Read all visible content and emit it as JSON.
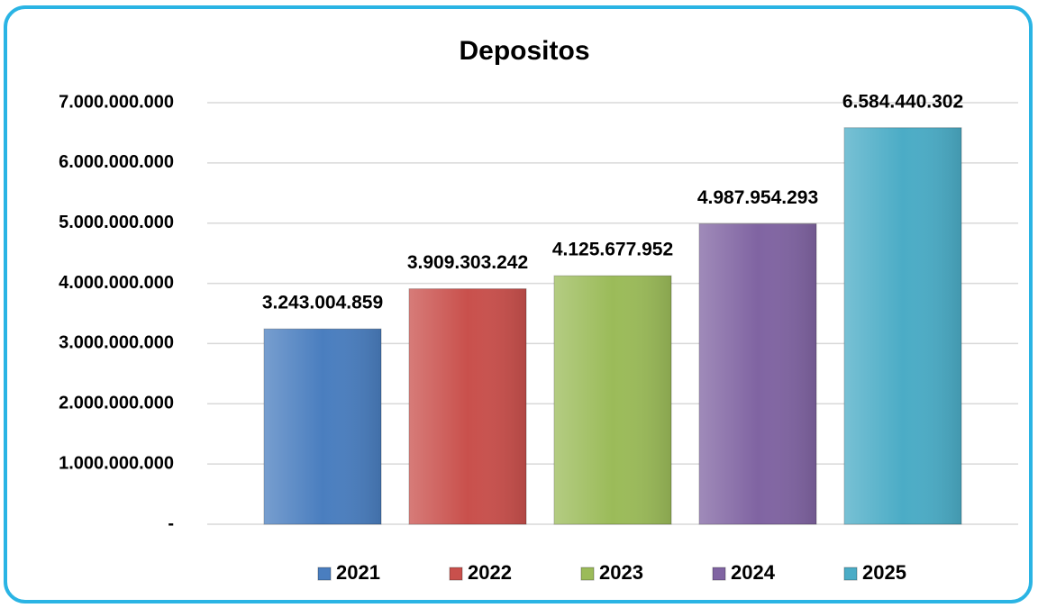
{
  "chart_data": {
    "type": "bar",
    "title": "Depositos",
    "categories": [
      null
    ],
    "series": [
      {
        "name": "2021",
        "color": "#4a7ebf",
        "values": [
          3243004859
        ],
        "value_labels": [
          "3.243.004.859"
        ]
      },
      {
        "name": "2022",
        "color": "#c9504c",
        "values": [
          3909303242
        ],
        "value_labels": [
          "3.909.303.242"
        ]
      },
      {
        "name": "2023",
        "color": "#9bbb59",
        "values": [
          4125677952
        ],
        "value_labels": [
          "4.125.677.952"
        ]
      },
      {
        "name": "2024",
        "color": "#8064a2",
        "values": [
          4987954293
        ],
        "value_labels": [
          "4.987.954.293"
        ]
      },
      {
        "name": "2025",
        "color": "#4bacc6",
        "values": [
          6584440302
        ],
        "value_labels": [
          "6.584.440.302"
        ]
      }
    ],
    "ylim": [
      0,
      7000000000
    ],
    "yticks": [
      {
        "value": 0,
        "label": "-"
      },
      {
        "value": 1000000000,
        "label": "1.000.000.000"
      },
      {
        "value": 2000000000,
        "label": "2.000.000.000"
      },
      {
        "value": 3000000000,
        "label": "3.000.000.000"
      },
      {
        "value": 4000000000,
        "label": "4.000.000.000"
      },
      {
        "value": 5000000000,
        "label": "5.000.000.000"
      },
      {
        "value": 6000000000,
        "label": "6.000.000.000"
      },
      {
        "value": 7000000000,
        "label": "7.000.000.000"
      }
    ],
    "grid": true,
    "legend": "bottom"
  }
}
